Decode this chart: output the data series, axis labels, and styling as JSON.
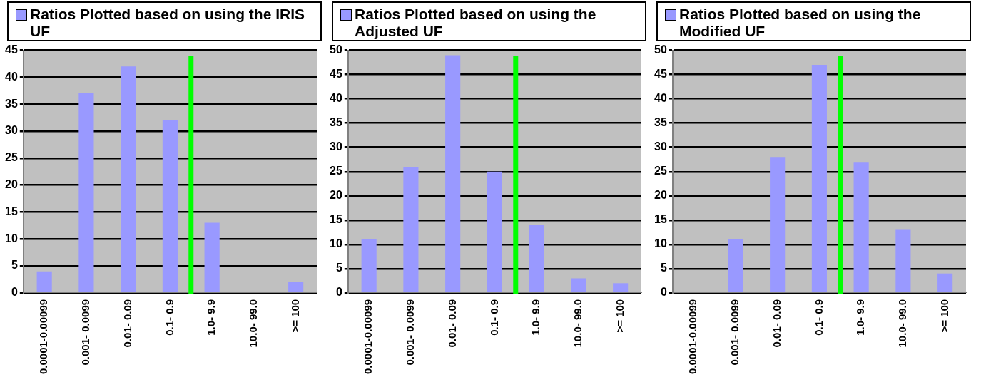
{
  "chart_data": [
    {
      "type": "bar",
      "categories": [
        "0.0001-0.00099",
        "0.001- 0.0099",
        "0.01- 0.09",
        "0.1- 0.9",
        "1.0- 9.9",
        "10.0- 99.0",
        ">= 100"
      ],
      "series": [
        {
          "name": "Ratios Plotted based on using the IRIS UF",
          "color": "#9999ff",
          "values": [
            4,
            37,
            42,
            32,
            13,
            0,
            2
          ]
        }
      ],
      "ylim": [
        0,
        45
      ],
      "yticks": [
        0,
        5,
        10,
        15,
        20,
        25,
        30,
        35,
        40,
        45
      ],
      "grid": "y",
      "legend": "top",
      "ref_lines": [
        {
          "axis": "x",
          "value": "1.0- 9.9",
          "color": "#00ff00"
        }
      ]
    },
    {
      "type": "bar",
      "categories": [
        "0.0001-0.00099",
        "0.001- 0.0099",
        "0.01- 0.09",
        "0.1- 0.9",
        "1.0- 9.9",
        "10.0- 99.0",
        ">= 100"
      ],
      "series": [
        {
          "name": "Ratios Plotted based on using the Adjusted UF",
          "color": "#9999ff",
          "values": [
            11,
            26,
            49,
            25,
            14,
            3,
            2
          ]
        }
      ],
      "ylim": [
        0,
        50
      ],
      "yticks": [
        0,
        5,
        10,
        15,
        20,
        25,
        30,
        35,
        40,
        45,
        50
      ],
      "grid": "y",
      "legend": "top",
      "ref_lines": [
        {
          "axis": "x",
          "value": "1.0- 9.9",
          "color": "#00ff00"
        }
      ]
    },
    {
      "type": "bar",
      "categories": [
        "0.0001-0.00099",
        "0.001- 0.0099",
        "0.01- 0.09",
        "0.1- 0.9",
        "1.0- 9.9",
        "10.0- 99.0",
        ">= 100"
      ],
      "series": [
        {
          "name": "Ratios Plotted based on using the Modified UF",
          "color": "#9999ff",
          "values": [
            0,
            11,
            28,
            47,
            27,
            13,
            4
          ]
        }
      ],
      "ylim": [
        0,
        50
      ],
      "yticks": [
        0,
        5,
        10,
        15,
        20,
        25,
        30,
        35,
        40,
        45,
        50
      ],
      "grid": "y",
      "legend": "top",
      "ref_lines": [
        {
          "axis": "x",
          "value": "1.0- 9.9",
          "color": "#00ff00"
        }
      ]
    }
  ]
}
